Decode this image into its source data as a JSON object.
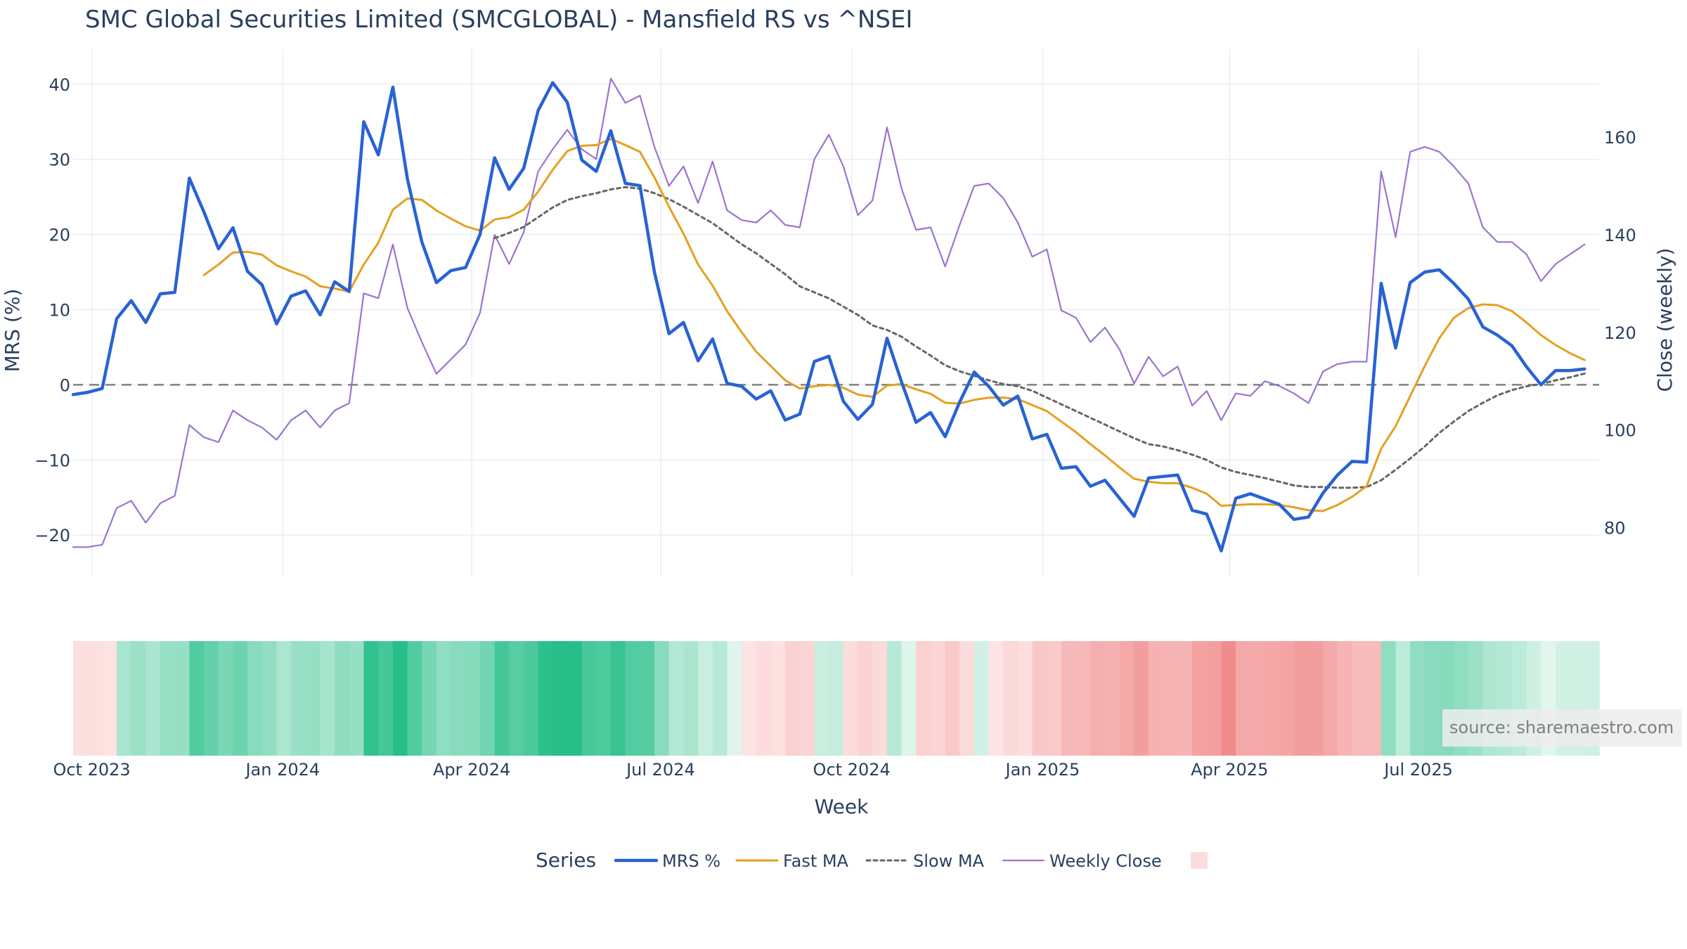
{
  "chart_data": {
    "type": "line",
    "title": "SMC Global Securities Limited (SMCGLOBAL) - Mansfield RS vs ^NSEI",
    "xlabel": "Week",
    "ylabel": "MRS (%)",
    "y2label": "Close (weekly)",
    "ylim": [
      -25.5,
      44
    ],
    "y2lim": [
      70,
      177
    ],
    "yticks": [
      40,
      30,
      20,
      10,
      0,
      -10,
      -20
    ],
    "ytick_labels": [
      "40",
      "30",
      "20",
      "10",
      "0",
      "−10",
      "−20"
    ],
    "y2ticks": [
      160,
      140,
      120,
      100,
      80
    ],
    "xticks": [
      "Oct 2023",
      "Jan 2024",
      "Apr 2024",
      "Jul 2024",
      "Oct 2024",
      "Jan 2025",
      "Apr 2025",
      "Jul 2025"
    ],
    "x_start": "2023-09-22",
    "x_end": "2025-09-26",
    "grid": true,
    "legend_title": "Series",
    "legend_position": "bottom",
    "source_text": "source: sharemaestro.com",
    "colors": {
      "mrs": "#2962d4",
      "fast": "#e5a020",
      "slow": "#666666",
      "close": "#9b74d0",
      "zero_line": "#808080",
      "grid": "#e9eef5"
    },
    "series": [
      {
        "name": "MRS %",
        "key": "mrs",
        "style": "solid-thick",
        "values": [
          -1.3,
          -1.0,
          -0.5,
          8.8,
          11.2,
          8.3,
          12.1,
          12.3,
          27.5,
          23.0,
          18.1,
          20.9,
          15.1,
          13.3,
          8.1,
          11.8,
          12.5,
          9.3,
          13.7,
          12.4,
          35.0,
          30.6,
          39.6,
          27.4,
          19.0,
          13.6,
          15.2,
          15.6,
          20.0,
          30.2,
          26.0,
          28.8,
          36.5,
          40.2,
          37.6,
          29.9,
          28.4,
          33.8,
          26.8,
          26.5,
          15.0,
          6.8,
          8.3,
          3.2,
          6.1,
          0.2,
          -0.2,
          -1.9,
          -0.8,
          -4.7,
          -3.9,
          3.1,
          3.8,
          -2.2,
          -4.6,
          -2.6,
          6.2,
          0.4,
          -5.0,
          -3.7,
          -6.9,
          -2.3,
          1.7,
          -0.2,
          -2.7,
          -1.5,
          -7.2,
          -6.6,
          -11.1,
          -10.9,
          -13.5,
          -12.7,
          -15.1,
          -17.5,
          -12.4,
          -12.2,
          -12.0,
          -16.7,
          -17.2,
          -22.1,
          -15.1,
          -14.5,
          -15.2,
          -15.9,
          -17.9,
          -17.6,
          -14.4,
          -12.0,
          -10.2,
          -10.3,
          13.5,
          4.9,
          13.6,
          15.0,
          15.3,
          13.5,
          11.4,
          7.7,
          6.6,
          5.2,
          2.4,
          0.0,
          1.9,
          1.9,
          2.1
        ]
      },
      {
        "name": "Fast MA",
        "key": "fast",
        "style": "solid",
        "values": [
          null,
          null,
          null,
          null,
          null,
          null,
          null,
          null,
          null,
          14.6,
          16.0,
          17.6,
          17.7,
          17.3,
          15.9,
          15.1,
          14.4,
          13.1,
          12.8,
          12.4,
          16.0,
          18.9,
          23.3,
          24.8,
          24.6,
          23.2,
          22.1,
          21.1,
          20.5,
          22.0,
          22.3,
          23.3,
          25.7,
          28.6,
          31.1,
          31.8,
          31.9,
          32.7,
          31.9,
          31.0,
          27.6,
          23.7,
          20.1,
          16.0,
          13.2,
          9.8,
          7.0,
          4.4,
          2.5,
          0.6,
          -0.5,
          -0.2,
          0.0,
          -0.4,
          -1.3,
          -1.6,
          -0.1,
          0.1,
          -0.6,
          -1.2,
          -2.4,
          -2.5,
          -2.0,
          -1.7,
          -1.7,
          -1.9,
          -2.7,
          -3.5,
          -4.9,
          -6.3,
          -7.9,
          -9.4,
          -11.0,
          -12.5,
          -12.9,
          -13.1,
          -13.1,
          -13.7,
          -14.5,
          -16.1,
          -16.0,
          -15.9,
          -15.9,
          -16.0,
          -16.3,
          -16.7,
          -16.8,
          -16.0,
          -14.9,
          -13.5,
          -8.5,
          -5.5,
          -1.5,
          2.5,
          6.2,
          8.9,
          10.2,
          10.7,
          10.6,
          9.8,
          8.3,
          6.6,
          5.3,
          4.2,
          3.3
        ]
      },
      {
        "name": "Slow MA",
        "key": "slow",
        "style": "dotted",
        "values": [
          null,
          null,
          null,
          null,
          null,
          null,
          null,
          null,
          null,
          null,
          null,
          null,
          null,
          null,
          null,
          null,
          null,
          null,
          null,
          null,
          null,
          null,
          null,
          null,
          null,
          null,
          null,
          null,
          null,
          19.5,
          20.2,
          21.0,
          22.3,
          23.6,
          24.6,
          25.1,
          25.5,
          26.0,
          26.3,
          26.1,
          25.5,
          24.7,
          23.7,
          22.6,
          21.5,
          20.1,
          18.7,
          17.5,
          16.1,
          14.7,
          13.1,
          12.3,
          11.5,
          10.4,
          9.3,
          7.9,
          7.3,
          6.4,
          5.1,
          3.9,
          2.6,
          1.8,
          1.2,
          0.6,
          0.1,
          -0.2,
          -0.8,
          -1.7,
          -2.6,
          -3.5,
          -4.4,
          -5.3,
          -6.2,
          -7.1,
          -7.9,
          -8.2,
          -8.7,
          -9.3,
          -10.0,
          -11.0,
          -11.6,
          -12.0,
          -12.4,
          -12.9,
          -13.4,
          -13.6,
          -13.6,
          -13.7,
          -13.7,
          -13.6,
          -12.7,
          -11.3,
          -9.8,
          -8.2,
          -6.4,
          -4.9,
          -3.5,
          -2.4,
          -1.4,
          -0.7,
          -0.2,
          0.1,
          0.6,
          1.0,
          1.5
        ]
      },
      {
        "name": "Weekly Close",
        "key": "close",
        "axis": "y2",
        "style": "solid-thin",
        "values": [
          76,
          76,
          76.5,
          84,
          85.5,
          81,
          85,
          86.5,
          101,
          98.5,
          97.5,
          104,
          102,
          100.5,
          98,
          102,
          104,
          100.5,
          104,
          105.5,
          128,
          127,
          138,
          125,
          118,
          111.5,
          114.5,
          117.5,
          124,
          140,
          134,
          140.5,
          153,
          157.5,
          161.5,
          157.5,
          155.5,
          172,
          167,
          168.5,
          158,
          150,
          154,
          146.5,
          155,
          145,
          143,
          142.5,
          145,
          142,
          141.5,
          155.5,
          160.5,
          154,
          144,
          147,
          162,
          149.5,
          141,
          141.5,
          133.5,
          142,
          150,
          150.5,
          147.5,
          142.5,
          135.5,
          137,
          124.5,
          123,
          118,
          121,
          116.5,
          109.5,
          115,
          111,
          113,
          105,
          108,
          102,
          107.5,
          107,
          110,
          109,
          107.5,
          105.5,
          112,
          113.5,
          114,
          114,
          153,
          139.5,
          157,
          158,
          157,
          154,
          150.5,
          141.5,
          138.5,
          138.5,
          136,
          130.5,
          134,
          136,
          138
        ]
      }
    ],
    "heatmap": {
      "colorscale": "diverging red-white-green on MRS %",
      "values": "derived from MRS % series"
    }
  }
}
